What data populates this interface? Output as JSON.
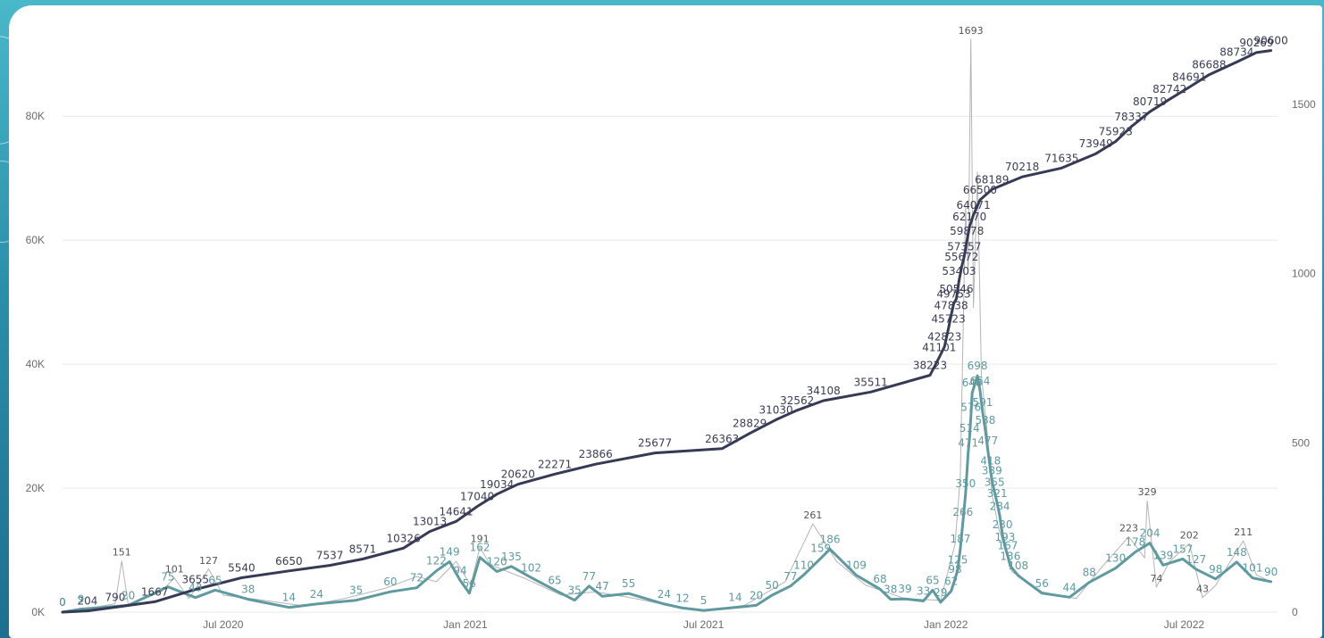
{
  "chart_data": {
    "type": "line",
    "title": "",
    "xlabel": "",
    "ylabel": "",
    "x_range": [
      "2020-03-01",
      "2022-09-10"
    ],
    "x_ticks": [
      {
        "date": "2020-07-01",
        "label": "Jul 2020"
      },
      {
        "date": "2021-01-01",
        "label": "Jan 2021"
      },
      {
        "date": "2021-07-01",
        "label": "Jul 2021"
      },
      {
        "date": "2022-01-01",
        "label": "Jan 2022"
      },
      {
        "date": "2022-07-01",
        "label": "Jul 2022"
      }
    ],
    "y_left": {
      "min": 0,
      "max": 95000,
      "ticks": [
        0,
        20000,
        40000,
        60000,
        80000
      ],
      "tick_labels": [
        "0K",
        "20K",
        "40K",
        "60K",
        "80K"
      ]
    },
    "y_right": {
      "min": 0,
      "max": 1740,
      "ticks": [
        0,
        500,
        1000,
        1500
      ],
      "tick_labels": [
        "0",
        "500",
        "1000",
        "1500"
      ]
    },
    "grid": true,
    "legend": "none",
    "colors": {
      "cumulative": "#363a55",
      "moving_average": "#5e9aa0",
      "daily": "#b4b4b4"
    },
    "series": [
      {
        "axis": "left",
        "color": "#363a55",
        "points": [
          [
            "2020-03-01",
            0
          ],
          [
            "2020-03-20",
            204
          ],
          [
            "2020-04-10",
            790
          ],
          [
            "2020-05-10",
            1667
          ],
          [
            "2020-06-10",
            3655
          ],
          [
            "2020-07-15",
            5540
          ],
          [
            "2020-08-20",
            6650
          ],
          [
            "2020-09-20",
            7537
          ],
          [
            "2020-10-15",
            8571
          ],
          [
            "2020-11-15",
            10326
          ],
          [
            "2020-12-05",
            13013
          ],
          [
            "2020-12-25",
            14641
          ],
          [
            "2021-01-10",
            17040
          ],
          [
            "2021-01-25",
            19034
          ],
          [
            "2021-02-10",
            20620
          ],
          [
            "2021-03-10",
            22271
          ],
          [
            "2021-04-10",
            23866
          ],
          [
            "2021-05-25",
            25677
          ],
          [
            "2021-07-15",
            26363
          ],
          [
            "2021-08-05",
            28829
          ],
          [
            "2021-08-25",
            31030
          ],
          [
            "2021-09-10",
            32562
          ],
          [
            "2021-09-30",
            34108
          ],
          [
            "2021-11-05",
            35511
          ],
          [
            "2021-12-20",
            38223
          ],
          [
            "2021-12-27",
            41101
          ],
          [
            "2021-12-31",
            42823
          ],
          [
            "2022-01-03",
            45723
          ],
          [
            "2022-01-05",
            47838
          ],
          [
            "2022-01-07",
            49753
          ],
          [
            "2022-01-09",
            50546
          ],
          [
            "2022-01-11",
            53403
          ],
          [
            "2022-01-13",
            55672
          ],
          [
            "2022-01-15",
            57357
          ],
          [
            "2022-01-17",
            59878
          ],
          [
            "2022-01-19",
            62170
          ],
          [
            "2022-01-22",
            64071
          ],
          [
            "2022-01-27",
            66500
          ],
          [
            "2022-02-05",
            68189
          ],
          [
            "2022-02-28",
            70218
          ],
          [
            "2022-03-30",
            71635
          ],
          [
            "2022-04-25",
            73949
          ],
          [
            "2022-05-10",
            75923
          ],
          [
            "2022-05-22",
            78337
          ],
          [
            "2022-06-05",
            80719
          ],
          [
            "2022-06-20",
            82742
          ],
          [
            "2022-07-05",
            84691
          ],
          [
            "2022-07-20",
            86688
          ],
          [
            "2022-08-10",
            88734
          ],
          [
            "2022-08-25",
            90269
          ],
          [
            "2022-09-05",
            90600
          ]
        ]
      },
      {
        "axis": "right",
        "color": "#5e9aa0",
        "points": [
          [
            "2020-03-01",
            0
          ],
          [
            "2020-03-15",
            9
          ],
          [
            "2020-04-20",
            20
          ],
          [
            "2020-05-20",
            75
          ],
          [
            "2020-06-10",
            43
          ],
          [
            "2020-06-25",
            65
          ],
          [
            "2020-07-20",
            38
          ],
          [
            "2020-08-20",
            14
          ],
          [
            "2020-09-10",
            24
          ],
          [
            "2020-10-10",
            35
          ],
          [
            "2020-11-05",
            60
          ],
          [
            "2020-11-25",
            72
          ],
          [
            "2020-12-10",
            122
          ],
          [
            "2020-12-20",
            149
          ],
          [
            "2020-12-28",
            94
          ],
          [
            "2021-01-04",
            56
          ],
          [
            "2021-01-12",
            162
          ],
          [
            "2021-01-25",
            120
          ],
          [
            "2021-02-05",
            135
          ],
          [
            "2021-02-20",
            102
          ],
          [
            "2021-03-10",
            65
          ],
          [
            "2021-03-25",
            35
          ],
          [
            "2021-04-05",
            77
          ],
          [
            "2021-04-15",
            47
          ],
          [
            "2021-05-05",
            55
          ],
          [
            "2021-06-01",
            24
          ],
          [
            "2021-06-15",
            12
          ],
          [
            "2021-07-01",
            5
          ],
          [
            "2021-07-25",
            14
          ],
          [
            "2021-08-10",
            20
          ],
          [
            "2021-08-22",
            50
          ],
          [
            "2021-09-05",
            77
          ],
          [
            "2021-09-15",
            110
          ],
          [
            "2021-09-28",
            159
          ],
          [
            "2021-10-05",
            186
          ],
          [
            "2021-10-25",
            109
          ],
          [
            "2021-11-12",
            68
          ],
          [
            "2021-11-20",
            38
          ],
          [
            "2021-12-01",
            39
          ],
          [
            "2021-12-15",
            33
          ],
          [
            "2021-12-22",
            65
          ],
          [
            "2021-12-28",
            29
          ],
          [
            "2022-01-05",
            62
          ],
          [
            "2022-01-08",
            98
          ],
          [
            "2022-01-10",
            125
          ],
          [
            "2022-01-12",
            187
          ],
          [
            "2022-01-14",
            266
          ],
          [
            "2022-01-16",
            350
          ],
          [
            "2022-01-18",
            471
          ],
          [
            "2022-01-19",
            514
          ],
          [
            "2022-01-20",
            576
          ],
          [
            "2022-01-21",
            648
          ],
          [
            "2022-01-25",
            698
          ],
          [
            "2022-01-27",
            654
          ],
          [
            "2022-01-29",
            591
          ],
          [
            "2022-01-31",
            538
          ],
          [
            "2022-02-02",
            477
          ],
          [
            "2022-02-04",
            418
          ],
          [
            "2022-02-05",
            389
          ],
          [
            "2022-02-07",
            355
          ],
          [
            "2022-02-09",
            321
          ],
          [
            "2022-02-11",
            284
          ],
          [
            "2022-02-13",
            230
          ],
          [
            "2022-02-15",
            193
          ],
          [
            "2022-02-17",
            167
          ],
          [
            "2022-02-19",
            136
          ],
          [
            "2022-02-25",
            108
          ],
          [
            "2022-03-15",
            56
          ],
          [
            "2022-04-05",
            44
          ],
          [
            "2022-04-20",
            88
          ],
          [
            "2022-05-10",
            130
          ],
          [
            "2022-05-25",
            178
          ],
          [
            "2022-06-05",
            204
          ],
          [
            "2022-06-15",
            139
          ],
          [
            "2022-06-30",
            157
          ],
          [
            "2022-07-10",
            127
          ],
          [
            "2022-07-25",
            98
          ],
          [
            "2022-08-10",
            148
          ],
          [
            "2022-08-22",
            101
          ],
          [
            "2022-09-05",
            90
          ]
        ]
      },
      {
        "axis": "right",
        "color": "#b4b4b4",
        "points": [
          [
            "2020-03-01",
            0
          ],
          [
            "2020-03-20",
            10
          ],
          [
            "2020-04-10",
            25
          ],
          [
            "2020-04-15",
            151
          ],
          [
            "2020-04-20",
            20
          ],
          [
            "2020-05-15",
            60
          ],
          [
            "2020-05-25",
            101
          ],
          [
            "2020-06-05",
            40
          ],
          [
            "2020-06-20",
            127
          ],
          [
            "2020-07-01",
            50
          ],
          [
            "2020-08-01",
            35
          ],
          [
            "2020-09-01",
            18
          ],
          [
            "2020-10-01",
            40
          ],
          [
            "2020-11-01",
            70
          ],
          [
            "2020-11-25",
            105
          ],
          [
            "2020-12-10",
            90
          ],
          [
            "2020-12-25",
            150
          ],
          [
            "2021-01-05",
            80
          ],
          [
            "2021-01-12",
            191
          ],
          [
            "2021-01-20",
            140
          ],
          [
            "2021-02-15",
            100
          ],
          [
            "2021-03-15",
            50
          ],
          [
            "2021-04-10",
            60
          ],
          [
            "2021-05-10",
            40
          ],
          [
            "2021-06-10",
            15
          ],
          [
            "2021-07-01",
            5
          ],
          [
            "2021-08-01",
            20
          ],
          [
            "2021-09-01",
            90
          ],
          [
            "2021-09-22",
            261
          ],
          [
            "2021-10-10",
            150
          ],
          [
            "2021-11-01",
            80
          ],
          [
            "2021-12-01",
            40
          ],
          [
            "2021-12-28",
            35
          ],
          [
            "2022-01-08",
            200
          ],
          [
            "2022-01-12",
            400
          ],
          [
            "2022-01-16",
            1200
          ],
          [
            "2022-01-18",
            1000
          ],
          [
            "2022-01-20",
            1693
          ],
          [
            "2022-01-22",
            900
          ],
          [
            "2022-01-25",
            1300
          ],
          [
            "2022-01-28",
            700
          ],
          [
            "2022-02-01",
            550
          ],
          [
            "2022-02-05",
            350
          ],
          [
            "2022-02-10",
            250
          ],
          [
            "2022-02-20",
            120
          ],
          [
            "2022-03-15",
            60
          ],
          [
            "2022-04-10",
            40
          ],
          [
            "2022-05-01",
            140
          ],
          [
            "2022-05-20",
            223
          ],
          [
            "2022-06-01",
            160
          ],
          [
            "2022-06-03",
            329
          ],
          [
            "2022-06-10",
            74
          ],
          [
            "2022-06-20",
            150
          ],
          [
            "2022-07-05",
            202
          ],
          [
            "2022-07-15",
            43
          ],
          [
            "2022-07-25",
            79
          ],
          [
            "2022-08-15",
            211
          ],
          [
            "2022-08-25",
            110
          ],
          [
            "2022-09-05",
            90
          ]
        ]
      }
    ],
    "labels": [
      {
        "series": 2,
        "date": "2020-04-15",
        "value": "151"
      },
      {
        "series": 2,
        "date": "2020-05-25",
        "value": "101"
      },
      {
        "series": 2,
        "date": "2020-06-20",
        "value": "127"
      },
      {
        "series": 2,
        "date": "2021-01-12",
        "value": "191"
      },
      {
        "series": 2,
        "date": "2021-09-22",
        "value": "261"
      },
      {
        "series": 2,
        "date": "2022-01-20",
        "value": "1693"
      },
      {
        "series": 2,
        "date": "2022-05-20",
        "value": "223"
      },
      {
        "series": 2,
        "date": "2022-06-03",
        "value": "329"
      },
      {
        "series": 2,
        "date": "2022-06-10",
        "value": "74"
      },
      {
        "series": 2,
        "date": "2022-07-05",
        "value": "202"
      },
      {
        "series": 2,
        "date": "2022-07-15",
        "value": "43"
      },
      {
        "series": 2,
        "date": "2022-08-15",
        "value": "211"
      }
    ]
  }
}
